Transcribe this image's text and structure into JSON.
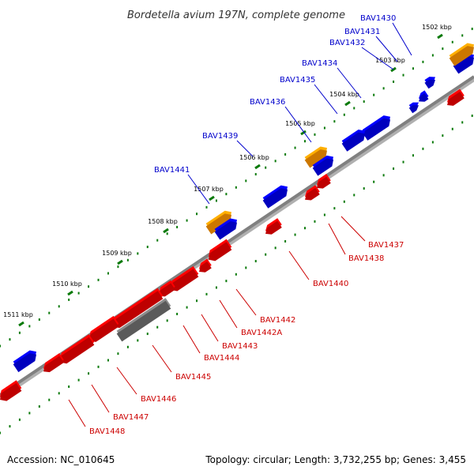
{
  "title": "Bordetella avium 197N, complete genome",
  "footer": {
    "accession": "Accession: NC_010645",
    "topology": "Topology: circular; Length: 3,732,255 bp; Genes: 3,455"
  },
  "colors": {
    "backbone": "#808080",
    "forward_gene": "#0000e0",
    "reverse_gene": "#e00000",
    "rna_gene": "#f08c00",
    "other_feature": "#707070",
    "tick": "#0a7a0a",
    "forward_label": "#0000cc",
    "reverse_label": "#cc0000"
  },
  "kbp_ticks": [
    "1502 kbp",
    "1503 kbp",
    "1504 kbp",
    "1505 kbp",
    "1506 kbp",
    "1507 kbp",
    "1508 kbp",
    "1509 kbp",
    "1510 kbp",
    "1511 kbp"
  ],
  "forward_labels": [
    "BAV1430",
    "BAV1431",
    "BAV1432",
    "BAV1434",
    "BAV1435",
    "BAV1436",
    "BAV1439",
    "BAV1441"
  ],
  "reverse_labels": [
    "BAV1437",
    "BAV1438",
    "BAV1440",
    "BAV1442",
    "BAV1442A",
    "BAV1443",
    "BAV1444",
    "BAV1445",
    "BAV1446",
    "BAV1447",
    "BAV1448"
  ]
}
